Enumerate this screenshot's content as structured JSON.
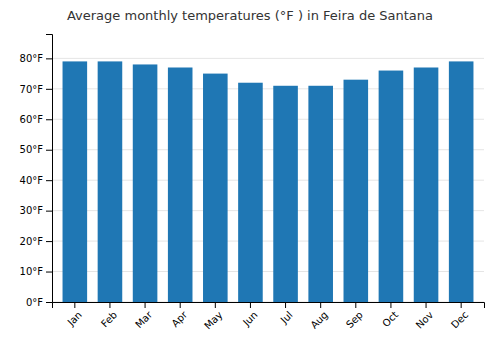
{
  "chart_data": {
    "type": "bar",
    "title": "Average monthly temperatures (°F ) in Feira de Santana",
    "categories": [
      "Jan",
      "Feb",
      "Mar",
      "Apr",
      "May",
      "Jun",
      "Jul",
      "Aug",
      "Sep",
      "Oct",
      "Nov",
      "Dec"
    ],
    "values": [
      79,
      79,
      78,
      77,
      75,
      72,
      71,
      71,
      73,
      76,
      77,
      79
    ],
    "ylim": [
      0,
      88
    ],
    "yticks": [
      {
        "value": 0,
        "label": "0°F"
      },
      {
        "value": 10,
        "label": "10°F"
      },
      {
        "value": 20,
        "label": "20°F"
      },
      {
        "value": 30,
        "label": "30°F"
      },
      {
        "value": 40,
        "label": "40°F"
      },
      {
        "value": 50,
        "label": "50°F"
      },
      {
        "value": 60,
        "label": "60°F"
      },
      {
        "value": 70,
        "label": "70°F"
      },
      {
        "value": 80,
        "label": "80°F"
      }
    ],
    "grid": true
  }
}
